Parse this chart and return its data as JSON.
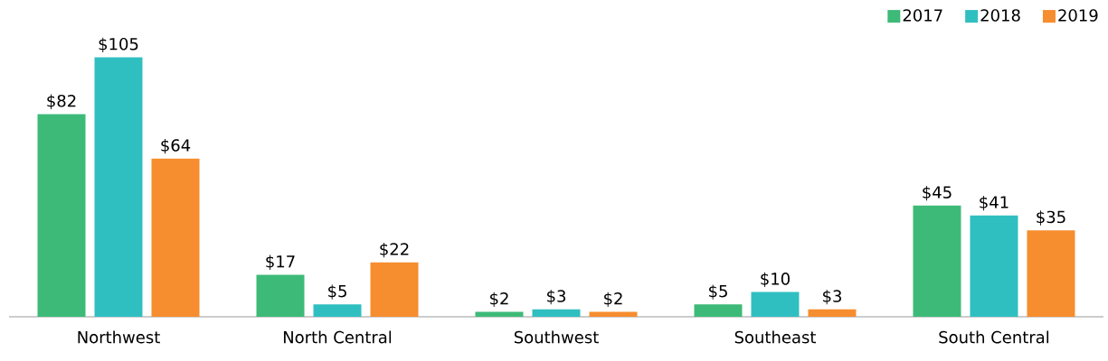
{
  "chart_data": {
    "type": "bar",
    "categories": [
      "Northwest",
      "North Central",
      "Southwest",
      "Southeast",
      "South Central"
    ],
    "series": [
      {
        "name": "2017",
        "color": "#3dba78",
        "values": [
          82,
          17,
          2,
          5,
          45
        ],
        "value_labels": [
          "$82",
          "$17",
          "$2",
          "$5",
          "$45"
        ]
      },
      {
        "name": "2018",
        "color": "#30bfc1",
        "values": [
          105,
          5,
          3,
          10,
          41
        ],
        "value_labels": [
          "$105",
          "$5",
          "$3",
          "$10",
          "$41"
        ]
      },
      {
        "name": "2019",
        "color": "#f68d2e",
        "values": [
          64,
          22,
          2,
          3,
          35
        ],
        "value_labels": [
          "$64",
          "$22",
          "$2",
          "$3",
          "$35"
        ]
      }
    ],
    "legend": "top right"
  }
}
